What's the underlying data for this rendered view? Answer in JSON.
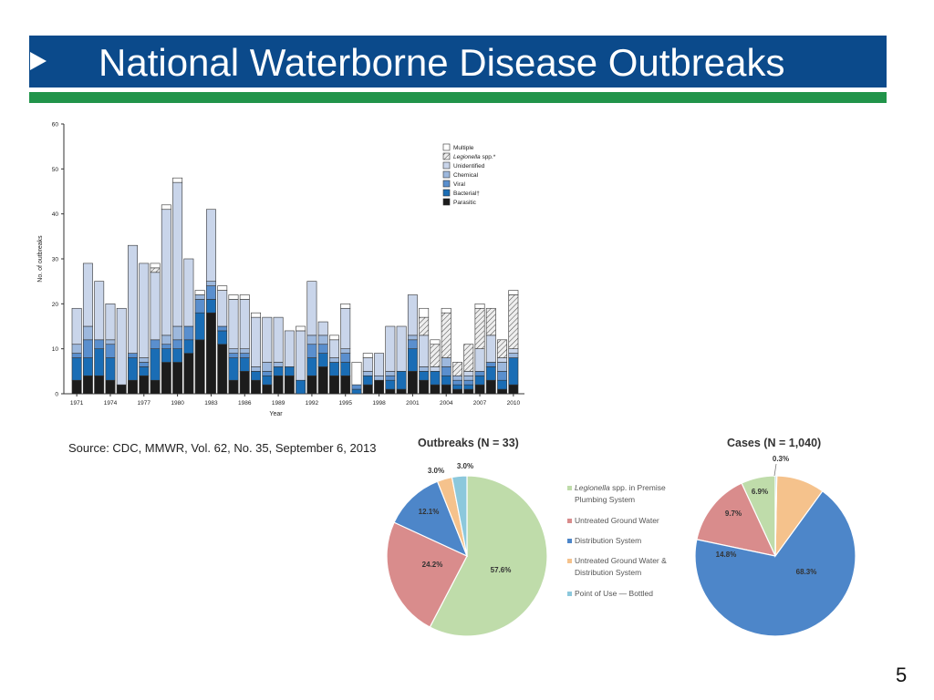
{
  "slide": {
    "title": "National Waterborne Disease Outbreaks",
    "source": "Source: CDC, MMWR, Vol. 62, No. 35, September 6, 2013",
    "page_number": "5"
  },
  "colors": {
    "title_bar": "#0b4a8b",
    "title_rule": "#21944a"
  },
  "chart_data": [
    {
      "type": "bar",
      "stacked": true,
      "xlabel": "Year",
      "ylabel": "No. of outbreaks",
      "ylim": [
        0,
        60
      ],
      "yticks": [
        "0",
        "10",
        "20",
        "30",
        "40",
        "50",
        "60"
      ],
      "x_tick_labels": [
        "1971",
        "1974",
        "1977",
        "1980",
        "1983",
        "1986",
        "1989",
        "1992",
        "1995",
        "1998",
        "2001",
        "2004",
        "2007",
        "2010"
      ],
      "x_tick_years": [
        1971,
        1974,
        1977,
        1980,
        1983,
        1986,
        1989,
        1992,
        1995,
        1998,
        2001,
        2004,
        2007,
        2010
      ],
      "legend_position": "top-right",
      "legend": [
        "Multiple",
        "Legionella spp.*",
        "Unidentified",
        "Chemical",
        "Viral",
        "Bacterial†",
        "Parasitic"
      ],
      "categories": [
        1971,
        1972,
        1973,
        1974,
        1975,
        1976,
        1977,
        1978,
        1979,
        1980,
        1981,
        1982,
        1983,
        1984,
        1985,
        1986,
        1987,
        1988,
        1989,
        1990,
        1991,
        1992,
        1993,
        1994,
        1995,
        1996,
        1997,
        1998,
        1999,
        2000,
        2001,
        2002,
        2003,
        2004,
        2005,
        2006,
        2007,
        2008,
        2009,
        2010
      ],
      "series": [
        {
          "name": "Parasitic",
          "color": "#1c1c1c",
          "pattern": "solid",
          "values": [
            3,
            4,
            4,
            3,
            2,
            3,
            4,
            3,
            7,
            7,
            9,
            12,
            18,
            11,
            3,
            5,
            3,
            2,
            4,
            4,
            0,
            4,
            6,
            4,
            4,
            0,
            2,
            3,
            1,
            1,
            5,
            3,
            2,
            2,
            1,
            1,
            2,
            3,
            1,
            2
          ]
        },
        {
          "name": "Bacterial†",
          "color": "#1a6db5",
          "pattern": "solid",
          "values": [
            5,
            4,
            6,
            5,
            0,
            5,
            2,
            7,
            3,
            3,
            3,
            6,
            3,
            3,
            5,
            3,
            2,
            2,
            2,
            2,
            3,
            4,
            3,
            3,
            3,
            1,
            2,
            0,
            2,
            4,
            5,
            2,
            3,
            2,
            1,
            1,
            2,
            3,
            2,
            6
          ]
        },
        {
          "name": "Viral",
          "color": "#5a8fce",
          "pattern": "solid",
          "values": [
            1,
            4,
            2,
            3,
            0,
            1,
            1,
            2,
            1,
            2,
            3,
            3,
            3,
            1,
            1,
            1,
            0,
            1,
            0,
            0,
            0,
            3,
            2,
            0,
            2,
            1,
            0,
            0,
            1,
            0,
            2,
            0,
            0,
            2,
            1,
            1,
            1,
            1,
            2,
            0
          ]
        },
        {
          "name": "Chemical",
          "color": "#9db8dd",
          "pattern": "solid",
          "values": [
            2,
            3,
            0,
            1,
            0,
            0,
            1,
            0,
            2,
            3,
            0,
            1,
            1,
            0,
            1,
            1,
            1,
            2,
            1,
            0,
            0,
            2,
            2,
            1,
            1,
            0,
            1,
            1,
            1,
            0,
            1,
            1,
            0,
            2,
            1,
            1,
            0,
            0,
            2,
            1
          ]
        },
        {
          "name": "Unidentified",
          "color": "#c9d5ea",
          "pattern": "solid",
          "values": [
            8,
            14,
            13,
            8,
            17,
            24,
            21,
            15,
            28,
            32,
            15,
            0,
            16,
            8,
            11,
            11,
            11,
            10,
            10,
            8,
            11,
            12,
            3,
            4,
            9,
            0,
            3,
            5,
            10,
            10,
            9,
            7,
            1,
            0,
            0,
            1,
            5,
            6,
            1,
            1
          ]
        },
        {
          "name": "Legionella spp.*",
          "color": "#e8e8e8",
          "pattern": "hatch",
          "values": [
            0,
            0,
            0,
            0,
            0,
            0,
            0,
            1,
            0,
            0,
            0,
            0,
            0,
            0,
            0,
            0,
            0,
            0,
            0,
            0,
            0,
            0,
            0,
            0,
            0,
            0,
            0,
            0,
            0,
            0,
            0,
            4,
            5,
            10,
            3,
            6,
            9,
            6,
            4,
            12
          ]
        },
        {
          "name": "Multiple",
          "color": "#ffffff",
          "pattern": "solid",
          "values": [
            0,
            0,
            0,
            0,
            0,
            0,
            0,
            1,
            1,
            1,
            0,
            1,
            0,
            1,
            1,
            1,
            1,
            0,
            0,
            0,
            1,
            0,
            0,
            1,
            1,
            5,
            1,
            0,
            0,
            0,
            0,
            2,
            1,
            1,
            0,
            0,
            1,
            0,
            0,
            1
          ]
        }
      ]
    },
    {
      "type": "pie",
      "title": "Outbreaks (N = 33)",
      "labels": [
        "Legionella spp. in Premise Plumbing System",
        "Untreated Ground Water",
        "Distribution System",
        "Untreated Ground Water & Distribution System",
        "Point of Use — Bottled"
      ],
      "values": [
        57.6,
        24.2,
        12.1,
        3.0,
        3.0
      ],
      "value_labels": [
        "57.6%",
        "24.2%",
        "12.1%",
        "3.0%",
        "3.0%"
      ],
      "colors": [
        "#bfdcaa",
        "#d98c8c",
        "#4d86c9",
        "#f5c28c",
        "#8cc8dc"
      ]
    },
    {
      "type": "pie",
      "title": "Cases (N = 1,040)",
      "labels": [
        "Legionella spp. in Premise Plumbing System",
        "Untreated Ground Water",
        "Distribution System",
        "Untreated Ground Water & Distribution System",
        "Point of Use — Bottled"
      ],
      "values": [
        6.9,
        14.8,
        68.3,
        9.7,
        0.3
      ],
      "value_labels": [
        "6.9%",
        "14.8%",
        "68.3%",
        "9.7%",
        "0.3%"
      ],
      "colors": [
        "#bfdcaa",
        "#d98c8c",
        "#4d86c9",
        "#f5c28c",
        "#8cc8dc"
      ]
    }
  ],
  "pie_legend": [
    {
      "label_italic": "Legionella",
      "label_rest": " spp. in Premise",
      "label_line2": "Plumbing System",
      "color": "#bfdcaa"
    },
    {
      "label_italic": "",
      "label_rest": "Untreated Ground Water",
      "label_line2": "",
      "color": "#d98c8c"
    },
    {
      "label_italic": "",
      "label_rest": "Distribution System",
      "label_line2": "",
      "color": "#4d86c9"
    },
    {
      "label_italic": "",
      "label_rest": "Untreated Ground Water &",
      "label_line2": "Distribution System",
      "color": "#f5c28c"
    },
    {
      "label_italic": "",
      "label_rest": "Point of Use — Bottled",
      "label_line2": "",
      "color": "#8cc8dc"
    }
  ]
}
